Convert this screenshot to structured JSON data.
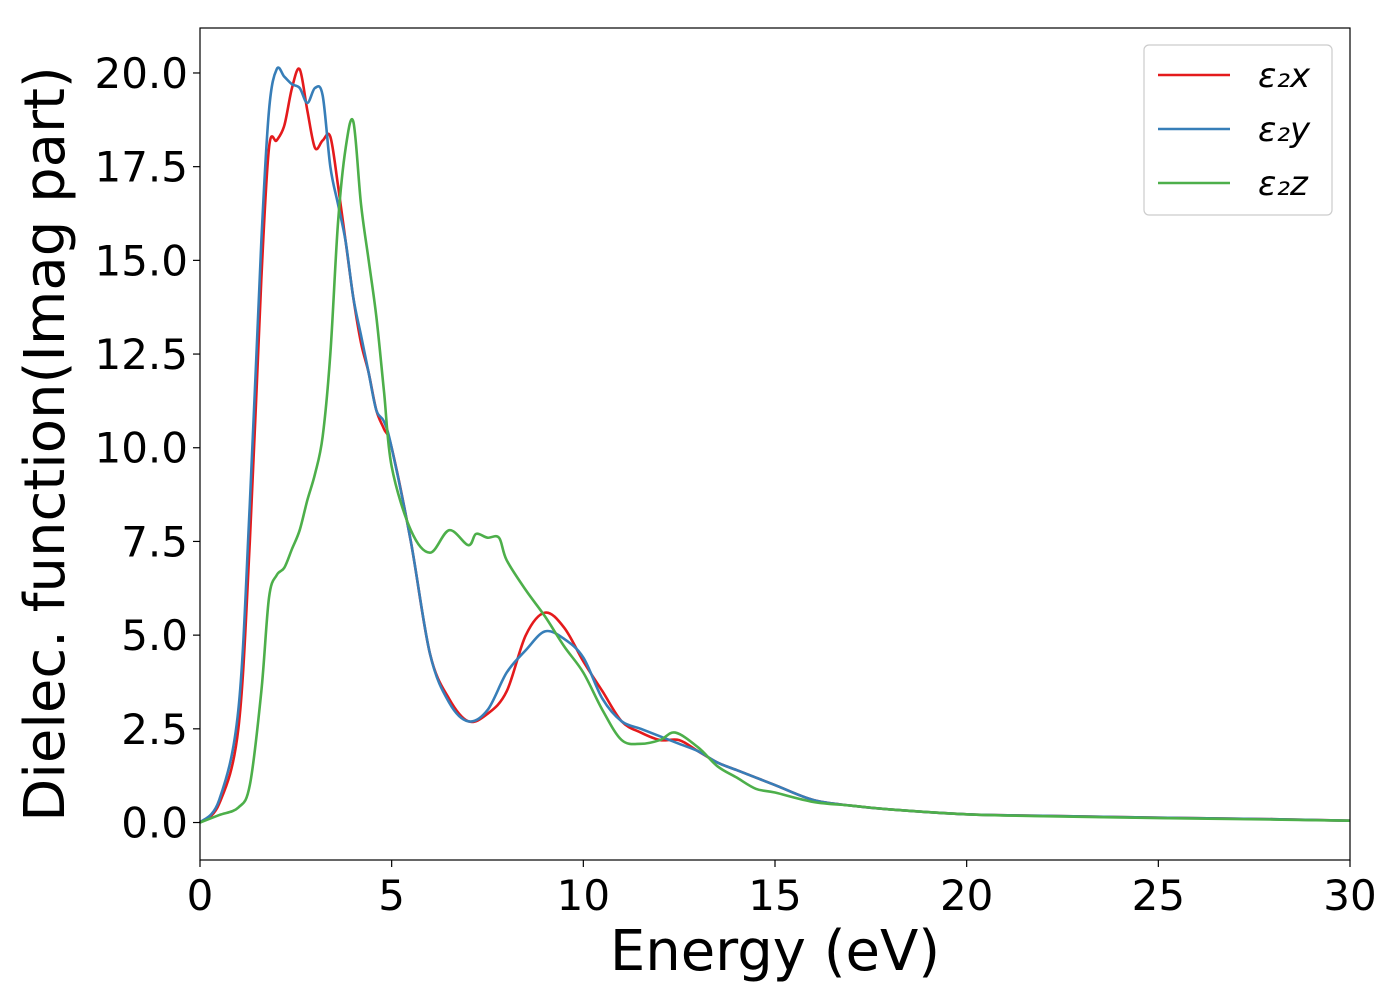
{
  "chart_data": {
    "type": "line",
    "xlabel": "Energy (eV)",
    "ylabel": "Dielec. function(Imag part)",
    "xlim": [
      0,
      30
    ],
    "ylim": [
      -1,
      21.2
    ],
    "xticks": [
      "0",
      "5",
      "10",
      "15",
      "20",
      "25",
      "30"
    ],
    "yticks": [
      "0.0",
      "2.5",
      "5.0",
      "7.5",
      "10.0",
      "12.5",
      "15.0",
      "17.5",
      "20.0"
    ],
    "grid": false,
    "legend_position": "top-right",
    "series": [
      {
        "name": "ε₂x",
        "color": "#e41a1c",
        "x": [
          0,
          0.5,
          1.0,
          1.3,
          1.6,
          1.8,
          2.0,
          2.2,
          2.4,
          2.6,
          2.8,
          3.0,
          3.2,
          3.4,
          3.6,
          3.8,
          4.0,
          4.2,
          4.4,
          4.6,
          4.8,
          5.0,
          5.5,
          6.0,
          6.5,
          7.0,
          7.5,
          8.0,
          8.5,
          9.0,
          9.5,
          10.0,
          10.5,
          11.0,
          11.5,
          12.0,
          12.5,
          13.0,
          13.5,
          14.0,
          14.5,
          15.0,
          16.0,
          17.0,
          18.0,
          20.0,
          22.0,
          25.0,
          28.0,
          30.0
        ],
        "y": [
          0,
          0.5,
          2.5,
          7.5,
          14.5,
          18.0,
          18.2,
          18.6,
          19.6,
          20.1,
          19.0,
          18.0,
          18.2,
          18.3,
          17.0,
          15.5,
          14.0,
          12.8,
          12.0,
          11.0,
          10.5,
          10.0,
          7.5,
          4.5,
          3.3,
          2.7,
          2.9,
          3.5,
          5.0,
          5.6,
          5.2,
          4.3,
          3.5,
          2.7,
          2.4,
          2.2,
          2.2,
          1.9,
          1.6,
          1.4,
          1.2,
          1.0,
          0.6,
          0.45,
          0.35,
          0.22,
          0.18,
          0.13,
          0.09,
          0.05
        ]
      },
      {
        "name": "ε₂y",
        "color": "#377eb8",
        "x": [
          0,
          0.5,
          1.0,
          1.3,
          1.6,
          1.8,
          2.0,
          2.2,
          2.4,
          2.6,
          2.8,
          3.0,
          3.2,
          3.4,
          3.6,
          3.8,
          4.0,
          4.2,
          4.4,
          4.6,
          4.8,
          5.0,
          5.5,
          6.0,
          6.5,
          7.0,
          7.5,
          8.0,
          8.5,
          9.0,
          9.5,
          10.0,
          10.5,
          11.0,
          11.5,
          12.0,
          12.5,
          13.0,
          13.5,
          14.0,
          14.5,
          15.0,
          16.0,
          17.0,
          18.0,
          20.0,
          22.0,
          25.0,
          28.0,
          30.0
        ],
        "y": [
          0,
          0.6,
          3.0,
          8.5,
          15.5,
          19.0,
          20.1,
          19.9,
          19.7,
          19.6,
          19.2,
          19.6,
          19.4,
          17.5,
          16.5,
          15.5,
          14.0,
          13.0,
          12.0,
          11.0,
          10.7,
          10.0,
          7.5,
          4.5,
          3.2,
          2.7,
          3.0,
          4.0,
          4.6,
          5.1,
          4.9,
          4.4,
          3.3,
          2.7,
          2.5,
          2.3,
          2.1,
          1.9,
          1.6,
          1.4,
          1.2,
          1.0,
          0.6,
          0.45,
          0.35,
          0.22,
          0.18,
          0.13,
          0.09,
          0.05
        ]
      },
      {
        "name": "ε₂z",
        "color": "#4daf4a",
        "x": [
          0,
          0.5,
          1.0,
          1.3,
          1.6,
          1.8,
          2.0,
          2.2,
          2.4,
          2.6,
          2.8,
          3.0,
          3.2,
          3.4,
          3.6,
          3.8,
          4.0,
          4.2,
          4.4,
          4.6,
          4.8,
          5.0,
          5.5,
          6.0,
          6.5,
          7.0,
          7.2,
          7.5,
          7.8,
          8.0,
          8.5,
          9.0,
          9.5,
          10.0,
          10.5,
          11.0,
          11.5,
          12.0,
          12.4,
          13.0,
          13.5,
          14.0,
          14.5,
          15.0,
          16.0,
          17.0,
          18.0,
          20.0,
          22.0,
          25.0,
          28.0,
          30.0
        ],
        "y": [
          0,
          0.2,
          0.4,
          1.0,
          3.5,
          6.0,
          6.6,
          6.8,
          7.3,
          7.8,
          8.6,
          9.3,
          10.3,
          12.5,
          16.0,
          18.0,
          18.7,
          16.5,
          15.0,
          13.5,
          11.5,
          9.5,
          7.8,
          7.2,
          7.8,
          7.4,
          7.7,
          7.6,
          7.6,
          7.0,
          6.2,
          5.5,
          4.7,
          4.0,
          3.0,
          2.2,
          2.1,
          2.2,
          2.4,
          2.0,
          1.5,
          1.2,
          0.9,
          0.8,
          0.55,
          0.45,
          0.35,
          0.22,
          0.17,
          0.12,
          0.08,
          0.05
        ]
      }
    ]
  }
}
